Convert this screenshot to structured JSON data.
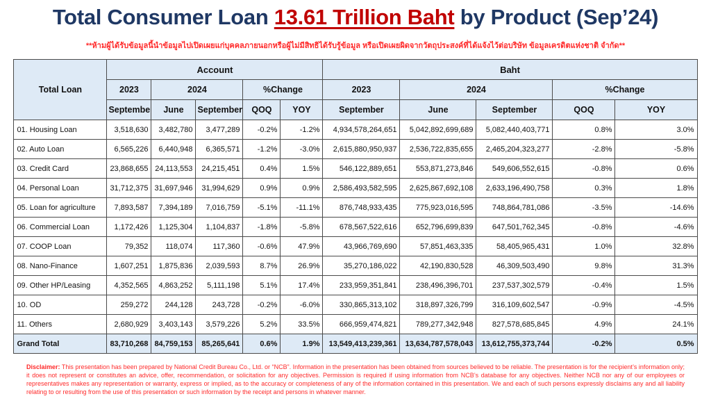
{
  "colors": {
    "title_navy": "#1F3864",
    "accent_red": "#C00000",
    "warning_red": "#FF2A2A",
    "header_fill": "#DEEAF6",
    "border": "#4a4a4a"
  },
  "title": {
    "prefix": "Total Consumer Loan ",
    "highlight": "13.61 Trillion Baht",
    "suffix": " by Product (Sep’24)"
  },
  "warning_th": "**ห้ามผู้ได้รับข้อมูลนี้นำข้อมูลไปเปิดเผยแก่บุคคลภายนอกหรือผู้ไม่มีสิทธิได้รับรู้ข้อมูล หรือเปิดเผยผิดจากวัตถุประสงค์ที่ได้แจ้งไว้ต่อบริษัท ข้อมูลเครดิตแห่งชาติ จำกัด**",
  "table": {
    "corner_label": "Total Loan",
    "group_headers": [
      "Account",
      "Baht"
    ],
    "period_headers": [
      "2023",
      "2024",
      "%Change"
    ],
    "sub_headers": [
      "September",
      "June",
      "September",
      "QOQ",
      "YOY"
    ],
    "rows": [
      {
        "label": "01. Housing Loan",
        "account": [
          "3,518,630",
          "3,482,780",
          "3,477,289",
          "-0.2%",
          "-1.2%"
        ],
        "baht": [
          "4,934,578,264,651",
          "5,042,892,699,689",
          "5,082,440,403,771",
          "0.8%",
          "3.0%"
        ]
      },
      {
        "label": "02. Auto Loan",
        "account": [
          "6,565,226",
          "6,440,948",
          "6,365,571",
          "-1.2%",
          "-3.0%"
        ],
        "baht": [
          "2,615,880,950,937",
          "2,536,722,835,655",
          "2,465,204,323,277",
          "-2.8%",
          "-5.8%"
        ]
      },
      {
        "label": "03. Credit Card",
        "account": [
          "23,868,655",
          "24,113,553",
          "24,215,451",
          "0.4%",
          "1.5%"
        ],
        "baht": [
          "546,122,889,651",
          "553,871,273,846",
          "549,606,552,615",
          "-0.8%",
          "0.6%"
        ]
      },
      {
        "label": "04. Personal Loan",
        "account": [
          "31,712,375",
          "31,697,946",
          "31,994,629",
          "0.9%",
          "0.9%"
        ],
        "baht": [
          "2,586,493,582,595",
          "2,625,867,692,108",
          "2,633,196,490,758",
          "0.3%",
          "1.8%"
        ]
      },
      {
        "label": "05. Loan for agriculture",
        "account": [
          "7,893,587",
          "7,394,189",
          "7,016,759",
          "-5.1%",
          "-11.1%"
        ],
        "baht": [
          "876,748,933,435",
          "775,923,016,595",
          "748,864,781,086",
          "-3.5%",
          "-14.6%"
        ]
      },
      {
        "label": "06. Commercial Loan",
        "account": [
          "1,172,426",
          "1,125,304",
          "1,104,837",
          "-1.8%",
          "-5.8%"
        ],
        "baht": [
          "678,567,522,616",
          "652,796,699,839",
          "647,501,762,345",
          "-0.8%",
          "-4.6%"
        ]
      },
      {
        "label": "07. COOP Loan",
        "account": [
          "79,352",
          "118,074",
          "117,360",
          "-0.6%",
          "47.9%"
        ],
        "baht": [
          "43,966,769,690",
          "57,851,463,335",
          "58,405,965,431",
          "1.0%",
          "32.8%"
        ]
      },
      {
        "label": "08. Nano-Finance",
        "account": [
          "1,607,251",
          "1,875,836",
          "2,039,593",
          "8.7%",
          "26.9%"
        ],
        "baht": [
          "35,270,186,022",
          "42,190,830,528",
          "46,309,503,490",
          "9.8%",
          "31.3%"
        ]
      },
      {
        "label": "09. Other HP/Leasing",
        "account": [
          "4,352,565",
          "4,863,252",
          "5,111,198",
          "5.1%",
          "17.4%"
        ],
        "baht": [
          "233,959,351,841",
          "238,496,396,701",
          "237,537,302,579",
          "-0.4%",
          "1.5%"
        ]
      },
      {
        "label": "10. OD",
        "account": [
          "259,272",
          "244,128",
          "243,728",
          "-0.2%",
          "-6.0%"
        ],
        "baht": [
          "330,865,313,102",
          "318,897,326,799",
          "316,109,602,547",
          "-0.9%",
          "-4.5%"
        ]
      },
      {
        "label": "11. Others",
        "account": [
          "2,680,929",
          "3,403,143",
          "3,579,226",
          "5.2%",
          "33.5%"
        ],
        "baht": [
          "666,959,474,821",
          "789,277,342,948",
          "827,578,685,845",
          "4.9%",
          "24.1%"
        ]
      }
    ],
    "grand_total": {
      "label": "Grand Total",
      "account": [
        "83,710,268",
        "84,759,153",
        "85,265,641",
        "0.6%",
        "1.9%"
      ],
      "baht": [
        "13,549,413,239,361",
        "13,634,787,578,043",
        "13,612,755,373,744",
        "-0.2%",
        "0.5%"
      ]
    }
  },
  "disclaimer": {
    "label": "Disclaimer:",
    "text": " This presentation has been prepared by National Credit Bureau Co., Ltd. or “NCB”. Information in the presentation has been obtained from sources believed to be reliable. The presentation is for the recipient’s information only; it does not represent or constitutes an advice, offer, recommendation, or solicitation for any objectives. Permission is required if using information from NCB’s database for any objectives. Neither NCB nor any of our employees or representatives makes any representation or warranty, express or implied, as to the accuracy or completeness of any of the information contained in this presentation. We and each of such persons expressly disclaims any and all liability relating to or resulting from the use of this presentation or such information by the receipt and persons in whatever manner."
  }
}
